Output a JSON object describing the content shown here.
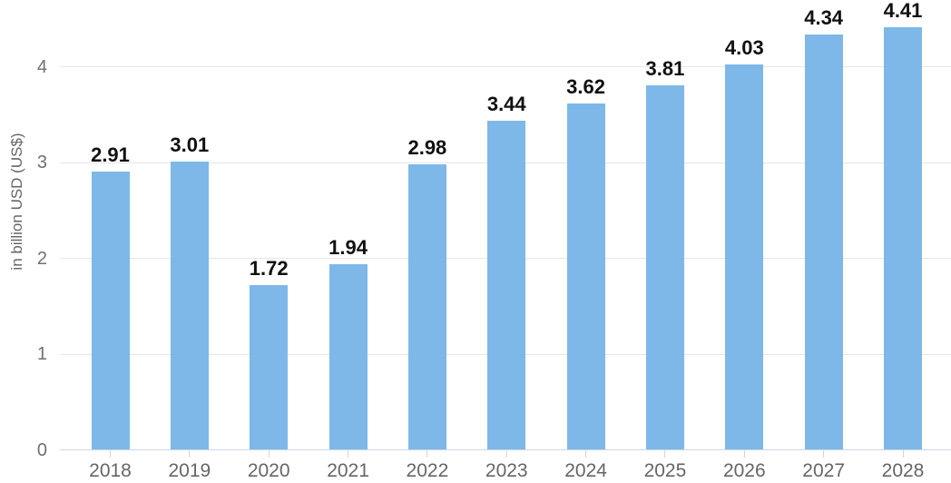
{
  "chart_data": {
    "type": "bar",
    "title": "",
    "xlabel": "",
    "ylabel": "in billion USD (US$)",
    "categories": [
      "2018",
      "2019",
      "2020",
      "2021",
      "2022",
      "2023",
      "2024",
      "2025",
      "2026",
      "2027",
      "2028"
    ],
    "values": [
      2.91,
      3.01,
      1.72,
      1.94,
      2.98,
      3.44,
      3.62,
      3.81,
      4.03,
      4.34,
      4.41
    ],
    "data_labels": [
      "2.91",
      "3.01",
      "1.72",
      "1.94",
      "2.98",
      "3.44",
      "3.62",
      "3.81",
      "4.03",
      "4.34",
      "4.41"
    ],
    "yticks": [
      0,
      1,
      2,
      3,
      4
    ],
    "ytick_labels": [
      "0",
      "1",
      "2",
      "3",
      "4"
    ],
    "ylim": [
      0,
      4.7
    ],
    "grid": "horizontal",
    "legend": "none"
  },
  "colors": {
    "bar": "#7DB8E8",
    "gridline": "#E6E6E6",
    "axis_line": "#CCD6EB",
    "tick": "#CCD6EB",
    "data_label": "#111111",
    "axis_text": "#666666",
    "background": "#FFFFFF"
  }
}
